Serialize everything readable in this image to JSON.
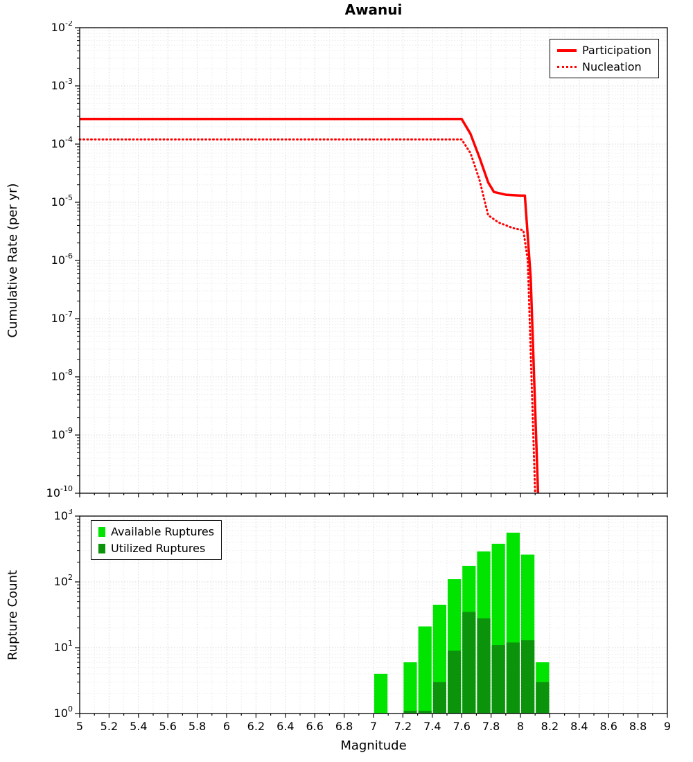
{
  "title": "Awanui",
  "xlabel": "Magnitude",
  "colors": {
    "line_red": "#ff0000",
    "available_green": "#00e400",
    "utilized_green": "#0c930c",
    "grid_major": "#d6d6d6",
    "grid_minor": "#ebebeb",
    "axis": "#000000",
    "background": "#ffffff"
  },
  "top_panel": {
    "ylabel": "Cumulative Rate (per yr)",
    "legend": [
      {
        "label": "Participation",
        "style": "solid"
      },
      {
        "label": "Nucleation",
        "style": "dotted"
      }
    ]
  },
  "bottom_panel": {
    "ylabel": "Rupture Count",
    "legend": [
      {
        "label": "Available Ruptures"
      },
      {
        "label": "Utilized Ruptures"
      }
    ]
  },
  "chart_data": [
    {
      "type": "line",
      "title": "Awanui",
      "xlabel": "Magnitude",
      "ylabel": "Cumulative Rate (per yr)",
      "xlim": [
        5,
        9
      ],
      "x_tick_step": 0.2,
      "y_scale": "log",
      "ylim": [
        1e-10,
        0.01
      ],
      "grid": true,
      "legend_position": "top-right",
      "series": [
        {
          "name": "Participation",
          "style": "solid",
          "color": "#ff0000",
          "x": [
            5.0,
            7.6,
            7.66,
            7.72,
            7.78,
            7.82,
            7.9,
            8.0,
            8.03,
            8.07,
            8.12
          ],
          "y": [
            0.00027,
            0.00027,
            0.00015,
            6e-05,
            2.2e-05,
            1.5e-05,
            1.35e-05,
            1.3e-05,
            1.3e-05,
            5e-07,
            1e-10
          ]
        },
        {
          "name": "Nucleation",
          "style": "dotted",
          "color": "#ff0000",
          "x": [
            5.0,
            7.6,
            7.66,
            7.72,
            7.78,
            7.85,
            7.95,
            8.02,
            8.05,
            8.1
          ],
          "y": [
            0.00012,
            0.00012,
            7e-05,
            2.5e-05,
            6e-06,
            4.5e-06,
            3.6e-06,
            3.3e-06,
            1e-06,
            1e-10
          ]
        }
      ]
    },
    {
      "type": "bar",
      "ylabel": "Rupture Count",
      "xlim": [
        5,
        9
      ],
      "x_tick_step": 0.2,
      "y_scale": "log",
      "ylim": [
        1,
        1000
      ],
      "bin_width": 0.1,
      "grid": true,
      "legend_position": "top-left",
      "bin_left_edges": [
        7.0,
        7.2,
        7.3,
        7.4,
        7.5,
        7.6,
        7.7,
        7.8,
        7.9,
        8.0,
        8.1
      ],
      "series": [
        {
          "name": "Available Ruptures",
          "color": "#00e400",
          "values": [
            4,
            6,
            21,
            45,
            110,
            175,
            290,
            380,
            560,
            260,
            6
          ]
        },
        {
          "name": "Utilized Ruptures",
          "color": "#0c930c",
          "values": [
            0,
            1,
            1,
            3,
            9,
            35,
            28,
            11,
            12,
            13,
            3
          ]
        }
      ]
    }
  ]
}
